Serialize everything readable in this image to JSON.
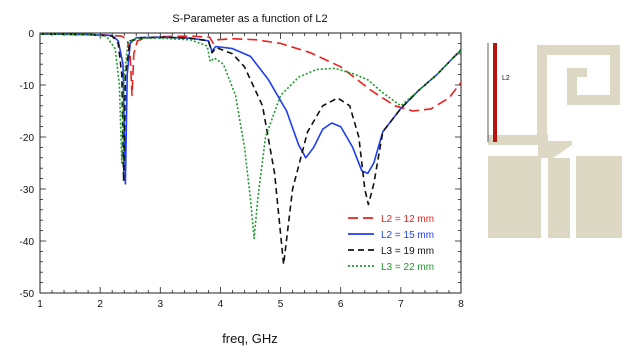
{
  "chart_data": {
    "type": "line",
    "title": "S-Parameter as a function of L2",
    "xlabel": "freq, GHz",
    "ylabel": "",
    "xlim": [
      1,
      8
    ],
    "ylim": [
      -50,
      0
    ],
    "xticks": [
      1,
      2,
      3,
      4,
      5,
      6,
      7,
      8
    ],
    "yticks": [
      0,
      -10,
      -20,
      -30,
      -40,
      -50
    ],
    "grid": false,
    "legend_position": "bottom-right",
    "series": [
      {
        "name": "L2 = 12 mm",
        "color": "#e8221f",
        "dash": "long-dash",
        "points": [
          [
            1,
            -0.2
          ],
          [
            2,
            -0.3
          ],
          [
            2.35,
            -0.6
          ],
          [
            2.45,
            -1.2
          ],
          [
            2.5,
            -4.5
          ],
          [
            2.53,
            -12
          ],
          [
            2.56,
            -4
          ],
          [
            2.62,
            -1.5
          ],
          [
            2.75,
            -1.0
          ],
          [
            3.0,
            -0.7
          ],
          [
            3.5,
            -0.6
          ],
          [
            3.82,
            -0.8
          ],
          [
            3.88,
            -2.0
          ],
          [
            3.95,
            -1.3
          ],
          [
            4.2,
            -1.1
          ],
          [
            4.6,
            -1.3
          ],
          [
            5.0,
            -2.0
          ],
          [
            5.5,
            -3.8
          ],
          [
            6.0,
            -6.5
          ],
          [
            6.5,
            -11
          ],
          [
            6.9,
            -14
          ],
          [
            7.2,
            -15
          ],
          [
            7.5,
            -14.6
          ],
          [
            7.8,
            -12.5
          ],
          [
            8.0,
            -9.5
          ]
        ]
      },
      {
        "name": "L2 = 15 mm",
        "color": "#1f3ef2",
        "dash": "solid",
        "points": [
          [
            1,
            -0.2
          ],
          [
            1.8,
            -0.3
          ],
          [
            2.2,
            -0.5
          ],
          [
            2.3,
            -1.5
          ],
          [
            2.38,
            -6
          ],
          [
            2.42,
            -29
          ],
          [
            2.45,
            -8
          ],
          [
            2.5,
            -2
          ],
          [
            2.6,
            -0.9
          ],
          [
            3.0,
            -0.8
          ],
          [
            3.5,
            -1.0
          ],
          [
            3.8,
            -1.5
          ],
          [
            3.86,
            -3.5
          ],
          [
            3.92,
            -2.6
          ],
          [
            4.2,
            -3.0
          ],
          [
            4.5,
            -4.5
          ],
          [
            4.8,
            -9
          ],
          [
            5.1,
            -15
          ],
          [
            5.3,
            -21.5
          ],
          [
            5.42,
            -24
          ],
          [
            5.55,
            -22
          ],
          [
            5.7,
            -18.5
          ],
          [
            5.85,
            -17.3
          ],
          [
            6.0,
            -18
          ],
          [
            6.2,
            -22
          ],
          [
            6.35,
            -26.5
          ],
          [
            6.45,
            -27
          ],
          [
            6.55,
            -25
          ],
          [
            6.7,
            -19
          ],
          [
            7.0,
            -14.5
          ],
          [
            7.3,
            -11
          ],
          [
            7.6,
            -8
          ],
          [
            7.85,
            -5
          ],
          [
            8.0,
            -3.3
          ]
        ]
      },
      {
        "name": "L3 = 19 mm",
        "color": "#111111",
        "dash": "dash",
        "points": [
          [
            1,
            -0.2
          ],
          [
            1.8,
            -0.3
          ],
          [
            2.2,
            -0.6
          ],
          [
            2.3,
            -2
          ],
          [
            2.36,
            -8
          ],
          [
            2.39,
            -28.5
          ],
          [
            2.42,
            -8
          ],
          [
            2.5,
            -1.5
          ],
          [
            2.7,
            -0.9
          ],
          [
            3.0,
            -0.8
          ],
          [
            3.5,
            -1.0
          ],
          [
            3.8,
            -1.5
          ],
          [
            3.86,
            -3.8
          ],
          [
            3.93,
            -2.8
          ],
          [
            4.2,
            -4.0
          ],
          [
            4.4,
            -6.5
          ],
          [
            4.7,
            -14
          ],
          [
            4.9,
            -27
          ],
          [
            5.05,
            -44.5
          ],
          [
            5.2,
            -30
          ],
          [
            5.45,
            -19
          ],
          [
            5.7,
            -14
          ],
          [
            5.95,
            -12.5
          ],
          [
            6.15,
            -14
          ],
          [
            6.3,
            -20
          ],
          [
            6.4,
            -30
          ],
          [
            6.46,
            -33
          ],
          [
            6.55,
            -29
          ],
          [
            6.7,
            -19
          ],
          [
            7.0,
            -14.5
          ],
          [
            7.3,
            -11
          ],
          [
            7.6,
            -8
          ],
          [
            7.85,
            -5
          ],
          [
            8.0,
            -3.2
          ]
        ]
      },
      {
        "name": "L3 = 22 mm",
        "color": "#1c9b2a",
        "dash": "dot",
        "points": [
          [
            1,
            -0.2
          ],
          [
            1.8,
            -0.3
          ],
          [
            2.1,
            -0.6
          ],
          [
            2.25,
            -3
          ],
          [
            2.32,
            -10
          ],
          [
            2.36,
            -25
          ],
          [
            2.39,
            -10
          ],
          [
            2.46,
            -2
          ],
          [
            2.6,
            -1
          ],
          [
            3.0,
            -1.0
          ],
          [
            3.5,
            -1.3
          ],
          [
            3.78,
            -2.5
          ],
          [
            3.83,
            -5.5
          ],
          [
            3.9,
            -4.8
          ],
          [
            4.05,
            -6
          ],
          [
            4.25,
            -12
          ],
          [
            4.4,
            -22
          ],
          [
            4.5,
            -32
          ],
          [
            4.56,
            -39.5
          ],
          [
            4.62,
            -32
          ],
          [
            4.75,
            -20
          ],
          [
            5.0,
            -12
          ],
          [
            5.3,
            -8.5
          ],
          [
            5.6,
            -7.0
          ],
          [
            5.9,
            -6.8
          ],
          [
            6.2,
            -7.8
          ],
          [
            6.45,
            -9
          ],
          [
            6.7,
            -11.5
          ],
          [
            7.0,
            -14
          ],
          [
            7.3,
            -11
          ],
          [
            7.6,
            -8
          ],
          [
            7.85,
            -5
          ],
          [
            8.0,
            -3.3
          ]
        ]
      }
    ]
  },
  "inset": {
    "label": "L2",
    "fill_color": "#ddd8c4",
    "marker_color": "#b7140f"
  }
}
